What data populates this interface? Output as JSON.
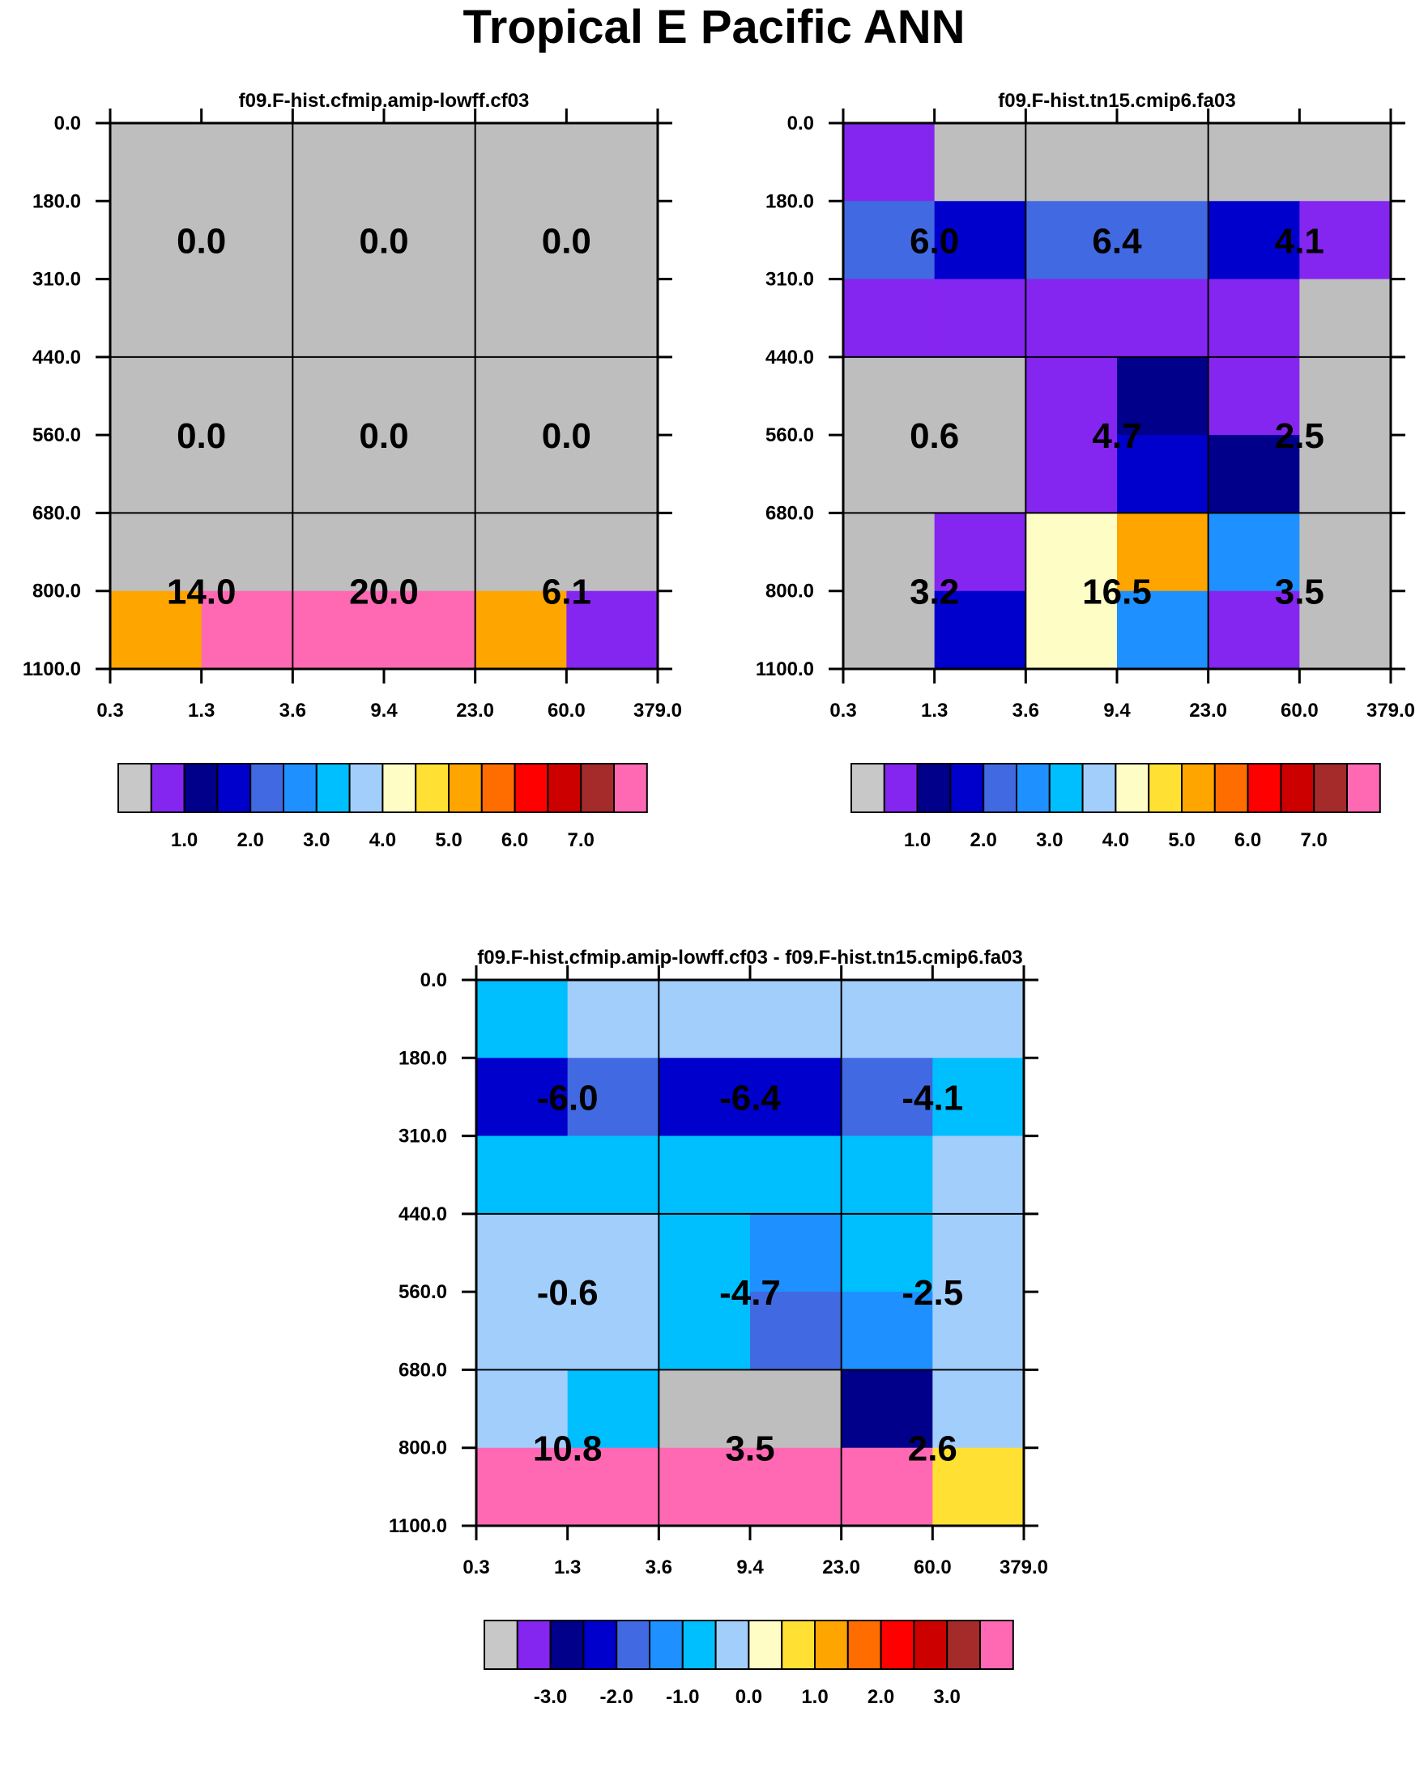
{
  "figure": {
    "title": "Tropical E Pacific ANN"
  },
  "chart_data": [
    {
      "type": "heatmap",
      "title": "f09.F-hist.cfmip.amip-lowff.cf03",
      "xlabel": "",
      "ylabel": "",
      "x_ticks": [
        "0.3",
        "1.3",
        "3.6",
        "9.4",
        "23.0",
        "60.0",
        "379.0"
      ],
      "y_ticks": [
        "0.0",
        "180.0",
        "310.0",
        "440.0",
        "560.0",
        "680.0",
        "800.0",
        "1100.0"
      ],
      "cell_colors": [
        [
          "gray",
          "gray",
          "gray",
          "gray",
          "gray",
          "gray"
        ],
        [
          "gray",
          "gray",
          "gray",
          "gray",
          "gray",
          "gray"
        ],
        [
          "gray",
          "gray",
          "gray",
          "gray",
          "gray",
          "gray"
        ],
        [
          "gray",
          "gray",
          "gray",
          "gray",
          "gray",
          "gray"
        ],
        [
          "gray",
          "gray",
          "gray",
          "gray",
          "gray",
          "gray"
        ],
        [
          "gray",
          "gray",
          "gray",
          "gray",
          "gray",
          "gray"
        ],
        [
          "orange",
          "hotpink",
          "hotpink",
          "hotpink",
          "orange",
          "purple"
        ]
      ],
      "box_values": [
        [
          "0.0",
          "0.0",
          "0.0"
        ],
        [
          "0.0",
          "0.0",
          "0.0"
        ],
        [
          "14.0",
          "20.0",
          "6.1"
        ]
      ],
      "colorbar": {
        "labels": [
          "1.0",
          "2.0",
          "3.0",
          "4.0",
          "5.0",
          "6.0",
          "7.0"
        ]
      }
    },
    {
      "type": "heatmap",
      "title": "f09.F-hist.tn15.cmip6.fa03",
      "xlabel": "",
      "ylabel": "",
      "x_ticks": [
        "0.3",
        "1.3",
        "3.6",
        "9.4",
        "23.0",
        "60.0",
        "379.0"
      ],
      "y_ticks": [
        "0.0",
        "180.0",
        "310.0",
        "440.0",
        "560.0",
        "680.0",
        "800.0",
        "1100.0"
      ],
      "cell_colors": [
        [
          "purple",
          "gray",
          "gray",
          "gray",
          "gray",
          "gray"
        ],
        [
          "royalblue",
          "mediumblue",
          "royalblue",
          "royalblue",
          "mediumblue",
          "purple"
        ],
        [
          "purple",
          "purple",
          "purple",
          "purple",
          "purple",
          "gray"
        ],
        [
          "gray",
          "gray",
          "purple",
          "navy",
          "purple",
          "gray"
        ],
        [
          "gray",
          "gray",
          "purple",
          "mediumblue",
          "navy",
          "gray"
        ],
        [
          "gray",
          "purple",
          "lightyellow",
          "orange",
          "dodgerblue",
          "gray"
        ],
        [
          "gray",
          "mediumblue",
          "lightyellow",
          "dodgerblue",
          "purple",
          "gray"
        ]
      ],
      "box_values": [
        [
          "6.0",
          "6.4",
          "4.1"
        ],
        [
          "0.6",
          "4.7",
          "2.5"
        ],
        [
          "3.2",
          "16.5",
          "3.5"
        ]
      ],
      "colorbar": {
        "labels": [
          "1.0",
          "2.0",
          "3.0",
          "4.0",
          "5.0",
          "6.0",
          "7.0"
        ]
      }
    },
    {
      "type": "heatmap",
      "title": "f09.F-hist.cfmip.amip-lowff.cf03 - f09.F-hist.tn15.cmip6.fa03",
      "xlabel": "",
      "ylabel": "",
      "x_ticks": [
        "0.3",
        "1.3",
        "3.6",
        "9.4",
        "23.0",
        "60.0",
        "379.0"
      ],
      "y_ticks": [
        "0.0",
        "180.0",
        "310.0",
        "440.0",
        "560.0",
        "680.0",
        "800.0",
        "1100.0"
      ],
      "cell_colors": [
        [
          "deepskyblue",
          "lightblue",
          "lightblue",
          "lightblue",
          "lightblue",
          "lightblue"
        ],
        [
          "mediumblue",
          "royalblue",
          "mediumblue",
          "mediumblue",
          "royalblue",
          "deepskyblue"
        ],
        [
          "deepskyblue",
          "deepskyblue",
          "deepskyblue",
          "deepskyblue",
          "deepskyblue",
          "lightblue"
        ],
        [
          "lightblue",
          "lightblue",
          "deepskyblue",
          "dodgerblue",
          "deepskyblue",
          "lightblue"
        ],
        [
          "lightblue",
          "lightblue",
          "deepskyblue",
          "royalblue",
          "dodgerblue",
          "lightblue"
        ],
        [
          "lightblue",
          "deepskyblue",
          "gray",
          "gray",
          "navy",
          "lightblue"
        ],
        [
          "hotpink",
          "hotpink",
          "hotpink",
          "hotpink",
          "hotpink",
          "gold"
        ]
      ],
      "box_values": [
        [
          "-6.0",
          "-6.4",
          "-4.1"
        ],
        [
          "-0.6",
          "-4.7",
          "-2.5"
        ],
        [
          "10.8",
          "3.5",
          "2.6"
        ]
      ],
      "colorbar": {
        "labels": [
          "-3.0",
          "-2.0",
          "-1.0",
          "0.0",
          "1.0",
          "2.0",
          "3.0"
        ]
      }
    }
  ],
  "palette": {
    "gray": "#bebebe",
    "purple": "#8525f0",
    "navy": "#00008b",
    "mediumblue": "#0000cd",
    "royalblue": "#4169e1",
    "dodgerblue": "#1e90ff",
    "deepskyblue": "#00bfff",
    "lightblue": "#a2cefc",
    "lightyellow": "#fffdc6",
    "gold": "#ffe033",
    "orange": "#ffa500",
    "darkorange": "#ff6d00",
    "red": "#ff0000",
    "darkred": "#cd0000",
    "brown": "#a52a2a",
    "hotpink": "#ff69b4",
    "colorbar_swatch0": "#c8c8c8"
  },
  "colorbar_order": [
    "colorbar_swatch0",
    "purple",
    "navy",
    "mediumblue",
    "royalblue",
    "dodgerblue",
    "deepskyblue",
    "lightblue",
    "lightyellow",
    "gold",
    "orange",
    "darkorange",
    "red",
    "darkred",
    "brown",
    "hotpink"
  ]
}
